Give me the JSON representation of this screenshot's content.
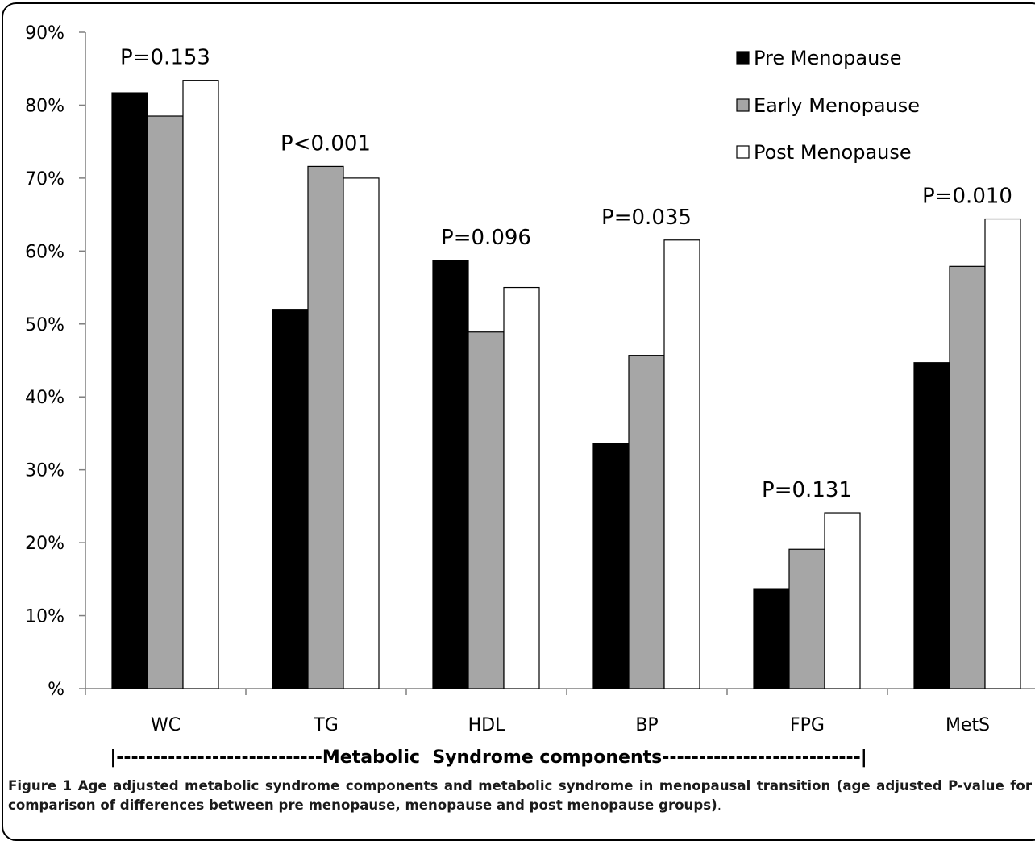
{
  "chart_data": {
    "type": "bar",
    "categories": [
      "WC",
      "TG",
      "HDL",
      "BP",
      "FPG",
      "MetS"
    ],
    "series": [
      {
        "name": "Pre Menopause",
        "values": [
          81.7,
          52.0,
          58.7,
          33.6,
          13.7,
          44.7
        ],
        "color": "#000000"
      },
      {
        "name": "Early Menopause",
        "values": [
          78.5,
          71.6,
          48.9,
          45.7,
          19.1,
          57.9
        ],
        "color": "#a6a6a6"
      },
      {
        "name": "Post Menopause",
        "values": [
          83.4,
          70.0,
          55.0,
          61.5,
          24.1,
          64.4
        ],
        "color": "#ffffff"
      }
    ],
    "p_values": [
      "P=0.153",
      "P<0.001",
      "P=0.096",
      "P=0.035",
      "P=0.131",
      "P=0.010"
    ],
    "ylim": [
      0,
      90
    ],
    "yticks": [
      {
        "value": 0,
        "label": "%"
      },
      {
        "value": 10,
        "label": "10%"
      },
      {
        "value": 20,
        "label": "20%"
      },
      {
        "value": 30,
        "label": "30%"
      },
      {
        "value": 40,
        "label": "40%"
      },
      {
        "value": 50,
        "label": "50%"
      },
      {
        "value": 60,
        "label": "60%"
      },
      {
        "value": 70,
        "label": "70%"
      },
      {
        "value": 80,
        "label": "80%"
      },
      {
        "value": 90,
        "label": "90%"
      }
    ],
    "xlabel": "|----------------------------Metabolic  Syndrome components---------------------------|",
    "ylabel": "",
    "grid": false,
    "legend_position": "top-right"
  },
  "caption": {
    "figure_label": "Figure 1",
    "text": "Age adjusted metabolic syndrome components and metabolic syndrome in menopausal transition (age adjusted P-value for comparison of differences between pre menopause, menopause and post menopause groups)",
    "end": "."
  }
}
